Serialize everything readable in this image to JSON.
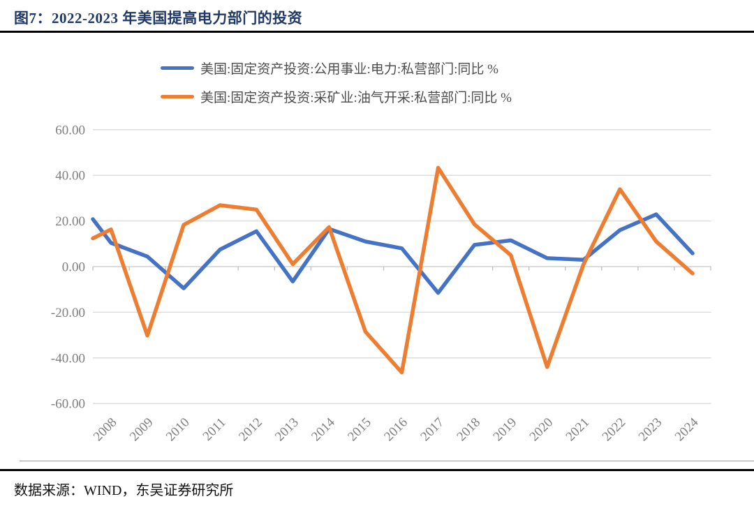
{
  "page": {
    "title": "图7：2022-2023 年美国提高电力部门的投资",
    "source_note": "数据来源：WIND，东吴证券研究所"
  },
  "chart_data": {
    "type": "line",
    "title": "图7：2022-2023 年美国提高电力部门的投资",
    "categories": [
      "2008",
      "2009",
      "2010",
      "2011",
      "2012",
      "2013",
      "2014",
      "2015",
      "2016",
      "2017",
      "2018",
      "2019",
      "2020",
      "2021",
      "2022",
      "2023",
      "2024"
    ],
    "series": [
      {
        "name": "美国:固定资产投资:公用事业:电力:私营部门:同比 %",
        "color": "#4472C4",
        "values": [
          10.4,
          4.4,
          -9.5,
          7.5,
          15.5,
          -6.5,
          16.5,
          11.0,
          8.0,
          -11.5,
          9.5,
          11.5,
          3.7,
          3.0,
          16.0,
          22.9,
          5.8
        ],
        "edge_lead_in_value": 20.8
      },
      {
        "name": "美国:固定资产投资:采矿业:油气开采:私营部门:同比 %",
        "color": "#ED7D31",
        "values": [
          16.3,
          -30.2,
          18.3,
          26.9,
          25.0,
          1.1,
          17.3,
          -28.5,
          -46.4,
          43.3,
          18.5,
          5.0,
          -44.0,
          1.0,
          33.9,
          11.0,
          -3.0
        ],
        "edge_lead_in_value": 12.4
      }
    ],
    "ylim": [
      -60,
      60
    ],
    "y_ticks": [
      60,
      40,
      20,
      0,
      -20,
      -40,
      -60
    ],
    "y_tick_labels": [
      "60.00",
      "40.00",
      "20.00",
      "0.00",
      "-20.00",
      "-40.00",
      "-60.00"
    ],
    "grid": "horizontal",
    "legend_position": "top",
    "x_label_rotation_deg": 45
  }
}
